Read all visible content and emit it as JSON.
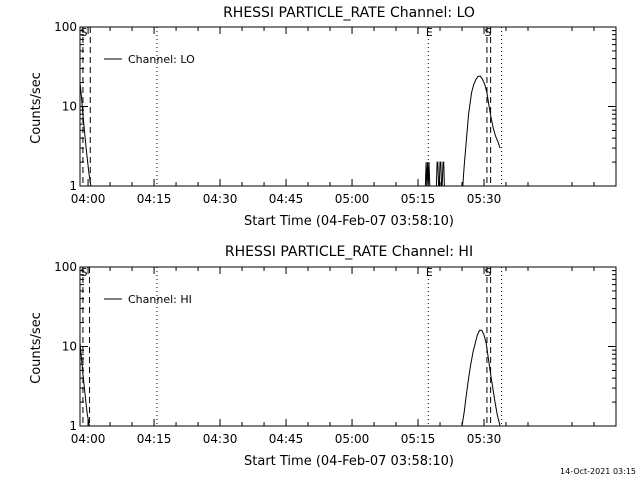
{
  "footer": {
    "timestamp": "14-Oct-2021 03:15"
  },
  "chart_data": [
    {
      "type": "line",
      "title": "RHESSI PARTICLE_RATE Channel: LO",
      "xlabel": "Start Time (04-Feb-07 03:58:10)",
      "ylabel": "Counts/sec",
      "yscale": "log",
      "ylim": [
        1,
        100
      ],
      "xlim": [
        "03:58:10",
        "06:00:00"
      ],
      "x_ticks": [
        "04:00",
        "04:15",
        "04:30",
        "04:45",
        "05:00",
        "05:15",
        "05:30"
      ],
      "y_ticks": [
        "1",
        "10",
        "100"
      ],
      "legend": {
        "entries": [
          "Channel: LO"
        ],
        "placement": "top-left"
      },
      "series": [
        {
          "name": "Channel: LO",
          "segments": [
            {
              "x": [
                "03:58:10",
                "03:58:30",
                "03:58:50",
                "03:59:10",
                "03:59:30",
                "03:59:50",
                "04:00:10",
                "04:00:30",
                "04:00:40"
              ],
              "y": [
                20,
                13,
                8,
                5,
                3.2,
                2.2,
                1.5,
                1.1,
                1
              ]
            },
            {
              "x": [
                "05:16:40",
                "05:16:50",
                "05:17:00",
                "05:17:10",
                "05:17:20",
                "05:17:30",
                "05:17:40"
              ],
              "y": [
                1,
                2,
                1,
                2,
                1,
                2,
                1
              ]
            },
            {
              "x": [
                "05:19:10",
                "05:19:20",
                "05:19:30",
                "05:19:40",
                "05:19:50",
                "05:20:00",
                "05:20:10",
                "05:20:20",
                "05:20:30",
                "05:20:40",
                "05:20:50",
                "05:21:00",
                "05:21:10"
              ],
              "y": [
                1,
                2,
                2,
                1,
                1,
                2,
                2,
                1,
                1,
                2,
                2,
                1,
                1
              ]
            },
            {
              "x": [
                "05:25:10",
                "05:25:30",
                "05:25:50",
                "05:26:10",
                "05:26:30",
                "05:26:50",
                "05:27:10",
                "05:27:40",
                "05:28:10",
                "05:28:40",
                "05:29:10",
                "05:29:40",
                "05:30:10",
                "05:30:40",
                "05:31:10",
                "05:31:40",
                "05:32:10",
                "05:32:40",
                "05:33:10",
                "05:33:40"
              ],
              "y": [
                1,
                1.8,
                3,
                5,
                8,
                11,
                15,
                19,
                22,
                24,
                24,
                22,
                19,
                15,
                10,
                7,
                5.2,
                4.2,
                3.6,
                3
              ]
            }
          ]
        }
      ],
      "markers": [
        {
          "label": "S",
          "x": "03:58:50",
          "style": "dashed"
        },
        {
          "label": "",
          "x": "04:00:30",
          "style": "dashed"
        },
        {
          "label": "",
          "x": "04:15:40",
          "style": "dotted"
        },
        {
          "label": "E",
          "x": "05:17:20",
          "style": "dotted"
        },
        {
          "label": "S",
          "x": "05:30:40",
          "style": "dashed"
        },
        {
          "label": "",
          "x": "05:31:30",
          "style": "dashed"
        },
        {
          "label": "",
          "x": "05:34:00",
          "style": "dotted"
        }
      ]
    },
    {
      "type": "line",
      "title": "RHESSI PARTICLE_RATE Channel: HI",
      "xlabel": "Start Time (04-Feb-07 03:58:10)",
      "ylabel": "Counts/sec",
      "yscale": "log",
      "ylim": [
        1,
        100
      ],
      "xlim": [
        "03:58:10",
        "06:00:00"
      ],
      "x_ticks": [
        "04:00",
        "04:15",
        "04:30",
        "04:45",
        "05:00",
        "05:15",
        "05:30"
      ],
      "y_ticks": [
        "1",
        "10",
        "100"
      ],
      "legend": {
        "entries": [
          "Channel: HI"
        ],
        "placement": "top-left"
      },
      "series": [
        {
          "name": "Channel: HI",
          "segments": [
            {
              "x": [
                "03:58:10",
                "03:58:30",
                "03:58:50",
                "03:59:10",
                "03:59:30",
                "03:59:50",
                "04:00:10",
                "04:00:20"
              ],
              "y": [
                11,
                7,
                4.5,
                3,
                2,
                1.4,
                1.1,
                1
              ]
            },
            {
              "x": [
                "05:25:00",
                "05:25:30",
                "05:26:00",
                "05:26:30",
                "05:27:00",
                "05:27:30",
                "05:28:00",
                "05:28:30",
                "05:29:00",
                "05:29:30",
                "05:30:00",
                "05:30:30",
                "05:31:00",
                "05:31:30",
                "05:32:00",
                "05:32:30",
                "05:33:00",
                "05:33:40"
              ],
              "y": [
                1,
                1.5,
                2.5,
                4,
                6,
                8.5,
                11,
                14,
                16,
                16,
                14,
                11,
                7,
                4.5,
                3,
                2,
                1.4,
                1
              ]
            }
          ]
        }
      ],
      "markers": [
        {
          "label": "S",
          "x": "03:58:50",
          "style": "dashed"
        },
        {
          "label": "",
          "x": "04:00:20",
          "style": "dashed"
        },
        {
          "label": "",
          "x": "04:15:40",
          "style": "dotted"
        },
        {
          "label": "E",
          "x": "05:17:20",
          "style": "dotted"
        },
        {
          "label": "S",
          "x": "05:30:40",
          "style": "dashed"
        },
        {
          "label": "",
          "x": "05:31:30",
          "style": "dashed"
        },
        {
          "label": "",
          "x": "05:34:00",
          "style": "dotted"
        }
      ]
    }
  ]
}
